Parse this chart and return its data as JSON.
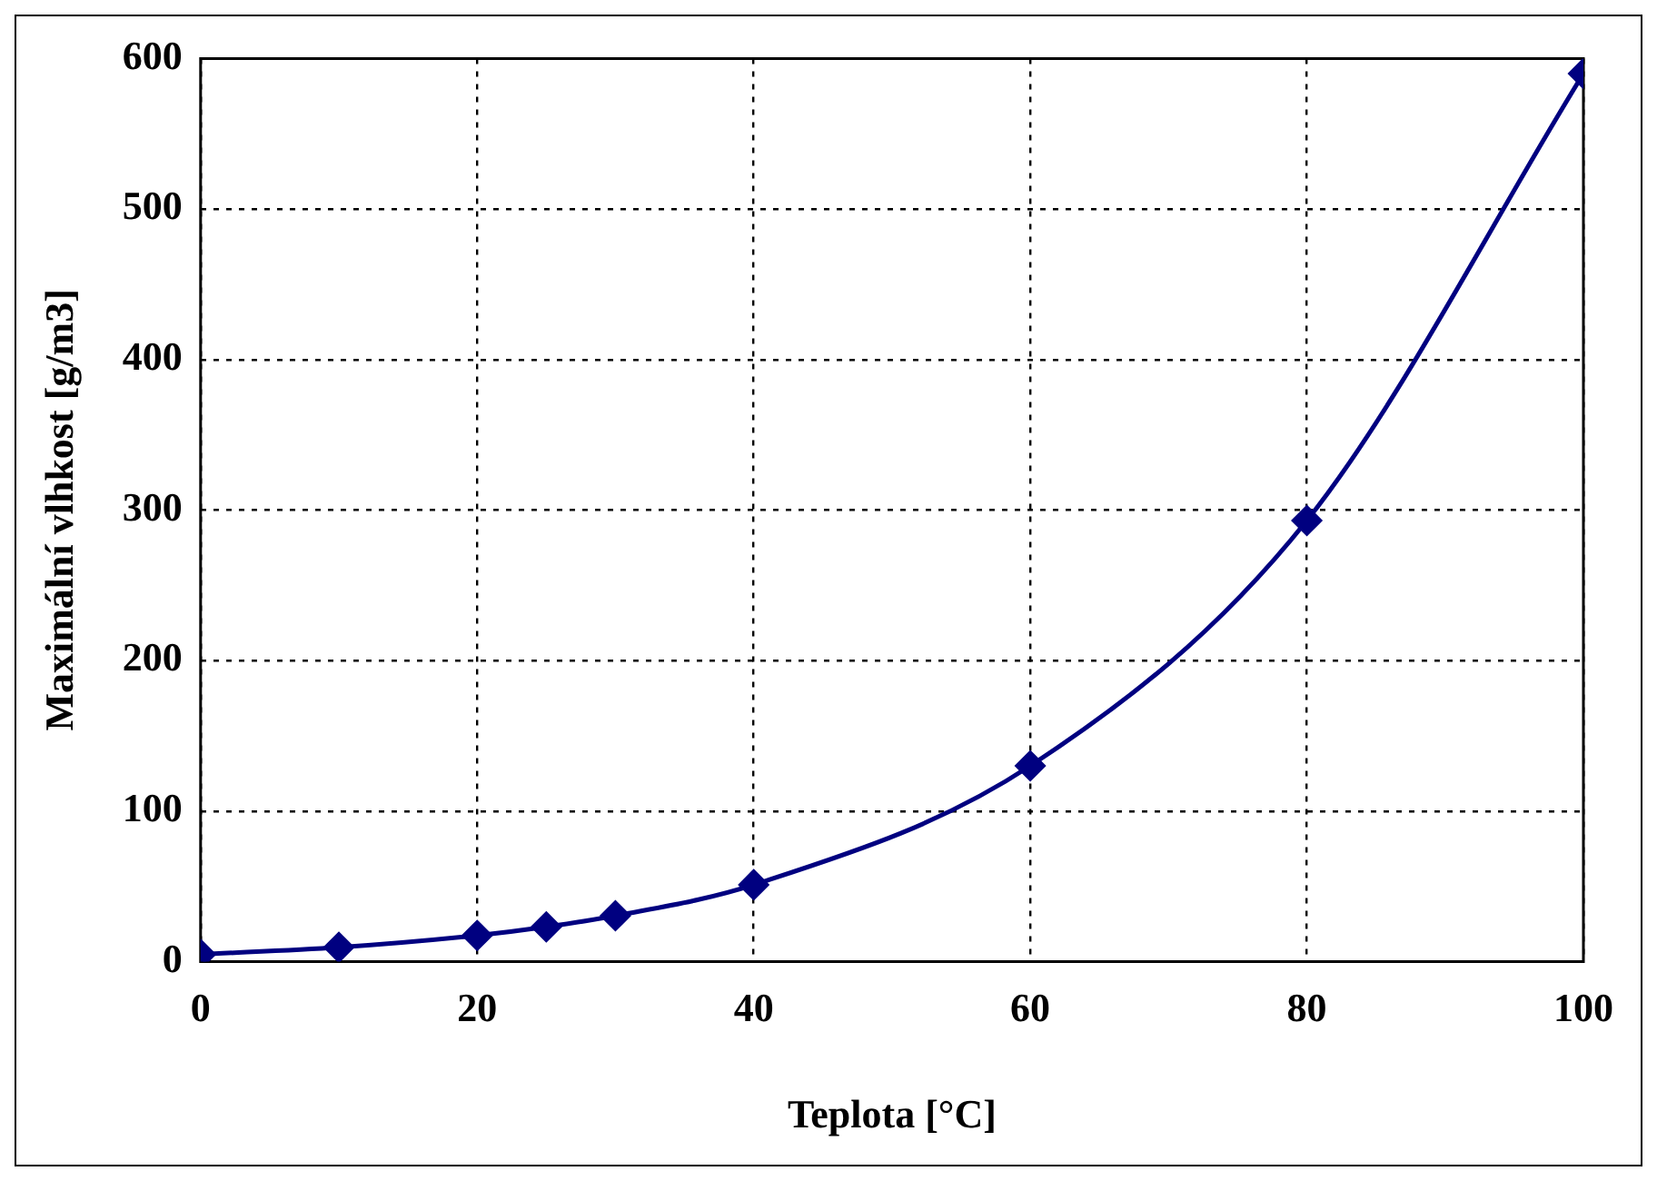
{
  "chart_data": {
    "type": "line",
    "xlabel": "Teplota [°C]",
    "ylabel": "Maximální vlhkost [g/m3]",
    "x": [
      0,
      10,
      20,
      25,
      30,
      40,
      60,
      80,
      100
    ],
    "series": [
      {
        "color": "#000080",
        "values": [
          4.8,
          9.4,
          17.3,
          23,
          30.4,
          51,
          130,
          293,
          590
        ]
      }
    ],
    "xlim": [
      0,
      100
    ],
    "xticks": [
      0,
      20,
      40,
      60,
      80,
      100
    ],
    "ylim": [
      0,
      600
    ],
    "yticks": [
      0,
      100,
      200,
      300,
      400,
      500,
      600
    ],
    "grid": true,
    "legend": false,
    "marker": "diamond",
    "line_style": "solid"
  }
}
